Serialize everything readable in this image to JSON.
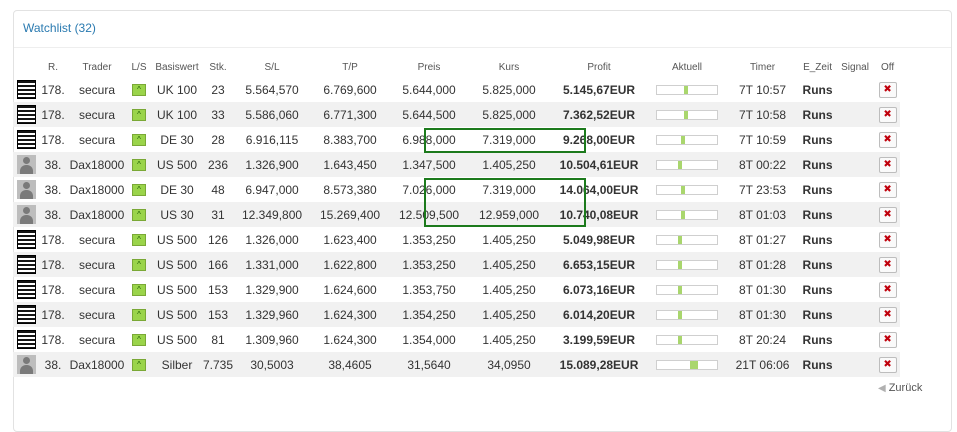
{
  "widget": {
    "title": "Watchlist (32)",
    "back_label": "Zurück"
  },
  "columns": [
    "R.",
    "Trader",
    "L/S",
    "Basiswert",
    "Stk.",
    "S/L",
    "T/P",
    "Preis",
    "Kurs",
    "Profit",
    "Aktuell",
    "Timer",
    "E_Zeit",
    "Signal",
    "Off"
  ],
  "icons": {
    "long": "arrow-up-icon",
    "off": "close-position-icon",
    "back": "arrow-left-icon"
  },
  "colors": {
    "sl": "#c0000c",
    "tp": "#6c8c12",
    "preis": "#2a8fc0",
    "profit": "#6c9c10",
    "runs": "#c98a00",
    "highlight": "#1c7a1c"
  },
  "rows": [
    {
      "avatar": "stripe",
      "rank": "178.",
      "trader": "secura",
      "ls": "^",
      "asset": "UK 100",
      "qty": "23",
      "sl": "5.564,570",
      "tp": "6.769,600",
      "preis": "5.644,000",
      "kurs": "5.825,000",
      "profit": "5.145,67EUR",
      "aktuell": 0.45,
      "timer": "7T 10:57",
      "ezeit": "Runs",
      "signal": ""
    },
    {
      "avatar": "stripe",
      "rank": "178.",
      "trader": "secura",
      "ls": "^",
      "asset": "UK 100",
      "qty": "33",
      "sl": "5.586,060",
      "tp": "6.771,300",
      "preis": "5.644,500",
      "kurs": "5.825,000",
      "profit": "7.362,52EUR",
      "aktuell": 0.45,
      "timer": "7T 10:58",
      "ezeit": "Runs",
      "signal": ""
    },
    {
      "avatar": "stripe",
      "rank": "178.",
      "trader": "secura",
      "ls": "^",
      "asset": "DE 30",
      "qty": "28",
      "sl": "6.916,115",
      "tp": "8.383,700",
      "preis": "6.988,000",
      "kurs": "7.319,000",
      "profit": "9.268,00EUR",
      "aktuell": 0.4,
      "timer": "7T 10:59",
      "ezeit": "Runs",
      "signal": ""
    },
    {
      "avatar": "person",
      "rank": "38.",
      "trader": "Dax18000",
      "ls": "^",
      "asset": "US 500",
      "qty": "236",
      "sl": "1.326,900",
      "tp": "1.643,450",
      "preis": "1.347,500",
      "kurs": "1.405,250",
      "profit": "10.504,61EUR",
      "aktuell": 0.35,
      "timer": "8T 00:22",
      "ezeit": "Runs",
      "signal": ""
    },
    {
      "avatar": "person",
      "rank": "38.",
      "trader": "Dax18000",
      "ls": "^",
      "asset": "DE 30",
      "qty": "48",
      "sl": "6.947,000",
      "tp": "8.573,380",
      "preis": "7.026,000",
      "kurs": "7.319,000",
      "profit": "14.064,00EUR",
      "aktuell": 0.4,
      "timer": "7T 23:53",
      "ezeit": "Runs",
      "signal": ""
    },
    {
      "avatar": "person",
      "rank": "38.",
      "trader": "Dax18000",
      "ls": "^",
      "asset": "US 30",
      "qty": "31",
      "sl": "12.349,800",
      "tp": "15.269,400",
      "preis": "12.509,500",
      "kurs": "12.959,000",
      "profit": "10.740,08EUR",
      "aktuell": 0.4,
      "timer": "8T 01:03",
      "ezeit": "Runs",
      "signal": ""
    },
    {
      "avatar": "stripe",
      "rank": "178.",
      "trader": "secura",
      "ls": "^",
      "asset": "US 500",
      "qty": "126",
      "sl": "1.326,000",
      "tp": "1.623,400",
      "preis": "1.353,250",
      "kurs": "1.405,250",
      "profit": "5.049,98EUR",
      "aktuell": 0.35,
      "timer": "8T 01:27",
      "ezeit": "Runs",
      "signal": ""
    },
    {
      "avatar": "stripe",
      "rank": "178.",
      "trader": "secura",
      "ls": "^",
      "asset": "US 500",
      "qty": "166",
      "sl": "1.331,000",
      "tp": "1.622,800",
      "preis": "1.353,250",
      "kurs": "1.405,250",
      "profit": "6.653,15EUR",
      "aktuell": 0.35,
      "timer": "8T 01:28",
      "ezeit": "Runs",
      "signal": ""
    },
    {
      "avatar": "stripe",
      "rank": "178.",
      "trader": "secura",
      "ls": "^",
      "asset": "US 500",
      "qty": "153",
      "sl": "1.329,900",
      "tp": "1.624,600",
      "preis": "1.353,750",
      "kurs": "1.405,250",
      "profit": "6.073,16EUR",
      "aktuell": 0.35,
      "timer": "8T 01:30",
      "ezeit": "Runs",
      "signal": ""
    },
    {
      "avatar": "stripe",
      "rank": "178.",
      "trader": "secura",
      "ls": "^",
      "asset": "US 500",
      "qty": "153",
      "sl": "1.329,960",
      "tp": "1.624,300",
      "preis": "1.354,250",
      "kurs": "1.405,250",
      "profit": "6.014,20EUR",
      "aktuell": 0.35,
      "timer": "8T 01:30",
      "ezeit": "Runs",
      "signal": ""
    },
    {
      "avatar": "stripe",
      "rank": "178.",
      "trader": "secura",
      "ls": "^",
      "asset": "US 500",
      "qty": "81",
      "sl": "1.309,960",
      "tp": "1.624,300",
      "preis": "1.354,000",
      "kurs": "1.405,250",
      "profit": "3.199,59EUR",
      "aktuell": 0.35,
      "timer": "8T 20:24",
      "ezeit": "Runs",
      "signal": ""
    },
    {
      "avatar": "person",
      "rank": "38.",
      "trader": "Dax18000",
      "ls": "^",
      "asset": "Silber",
      "qty": "7.735",
      "sl": "30,5003",
      "tp": "38,4605",
      "preis": "31,5640",
      "kurs": "34,0950",
      "profit": "15.089,28EUR",
      "aktuell": 0.55,
      "timer": "21T 06:06",
      "ezeit": "Runs",
      "signal": ""
    }
  ]
}
